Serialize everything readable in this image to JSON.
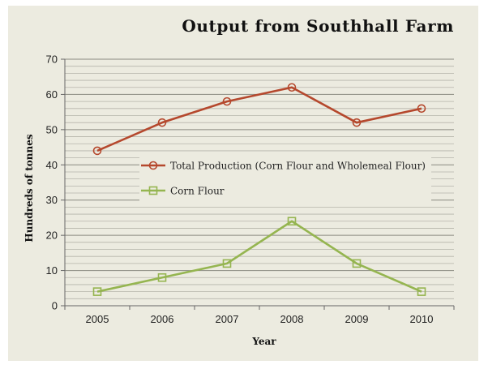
{
  "chart_data": {
    "type": "line",
    "title": "Output from Southhall Farm",
    "xlabel": "Year",
    "ylabel": "Hundreds of tonnes",
    "categories": [
      "2005",
      "2006",
      "2007",
      "2008",
      "2009",
      "2010"
    ],
    "ylim": [
      0,
      70
    ],
    "yticks": [
      0,
      10,
      20,
      30,
      40,
      50,
      60,
      70
    ],
    "minor_grid_step": 2,
    "grid": true,
    "legend_position": "inside-middle-left",
    "series": [
      {
        "name": "Total Production (Corn Flour and Wholemeal Flour)",
        "values": [
          44,
          52,
          58,
          62,
          52,
          56
        ],
        "color": "#b5482d",
        "marker": "circle"
      },
      {
        "name": "Corn Flour",
        "values": [
          4,
          8,
          12,
          24,
          12,
          4
        ],
        "color": "#95b550",
        "marker": "square"
      }
    ]
  }
}
